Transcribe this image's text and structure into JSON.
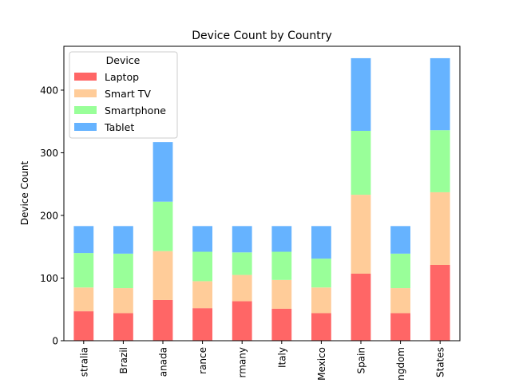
{
  "chart_data": {
    "type": "bar",
    "stacked": true,
    "title": "Device Count by Country",
    "xlabel": "",
    "ylabel": "Device Count",
    "ylim": [
      0,
      470
    ],
    "yticks": [
      0,
      100,
      200,
      300,
      400
    ],
    "categories": [
      "Australia",
      "Brazil",
      "Canada",
      "France",
      "Germany",
      "Italy",
      "Mexico",
      "Spain",
      "United Kingdom",
      "United States"
    ],
    "categories_visible_text": [
      "stralia",
      "Brazil",
      "anada",
      "rance",
      "rmany",
      "Italy",
      "Mexico",
      "Spain",
      "ngdom",
      "States"
    ],
    "legend": {
      "title": "Device",
      "placement": "upper-left"
    },
    "series": [
      {
        "name": "Laptop",
        "color": "#ff6666",
        "values": [
          47,
          44,
          65,
          52,
          63,
          51,
          44,
          107,
          44,
          121
        ]
      },
      {
        "name": "Smart TV",
        "color": "#ffcc99",
        "values": [
          38,
          40,
          78,
          43,
          42,
          46,
          41,
          126,
          40,
          116
        ]
      },
      {
        "name": "Smartphone",
        "color": "#99ff99",
        "values": [
          55,
          55,
          79,
          47,
          36,
          45,
          46,
          102,
          55,
          99
        ]
      },
      {
        "name": "Tablet",
        "color": "#66b3ff",
        "values": [
          43,
          44,
          95,
          41,
          42,
          41,
          52,
          116,
          44,
          115
        ]
      }
    ]
  }
}
